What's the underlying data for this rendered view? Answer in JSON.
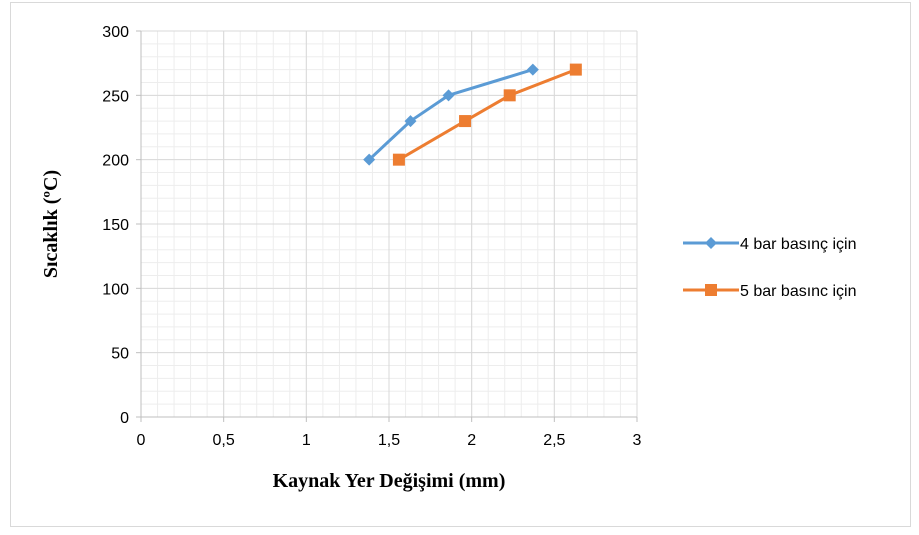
{
  "chart_data": {
    "type": "line",
    "title": "",
    "xlabel": "Kaynak Yer Değişimi (mm)",
    "ylabel": "Sıcaklık (ºC)",
    "xlim": [
      0,
      3
    ],
    "ylim": [
      0,
      300
    ],
    "x_ticks": [
      "0",
      "0,5",
      "1",
      "1,5",
      "2",
      "2,5",
      "3"
    ],
    "y_ticks": [
      "0",
      "50",
      "100",
      "150",
      "200",
      "250",
      "300"
    ],
    "grid": "major and minor gridlines on",
    "legend_position": "right",
    "series": [
      {
        "name": "4 bar basınç için",
        "color": "#5b9bd5",
        "marker": "diamond",
        "x": [
          1.38,
          1.63,
          1.86,
          2.37
        ],
        "y": [
          200,
          230,
          250,
          270
        ]
      },
      {
        "name": "5 bar basınc için",
        "color": "#ed7d31",
        "marker": "square",
        "x": [
          1.56,
          1.96,
          2.23,
          2.63
        ],
        "y": [
          200,
          230,
          250,
          270
        ]
      }
    ]
  }
}
